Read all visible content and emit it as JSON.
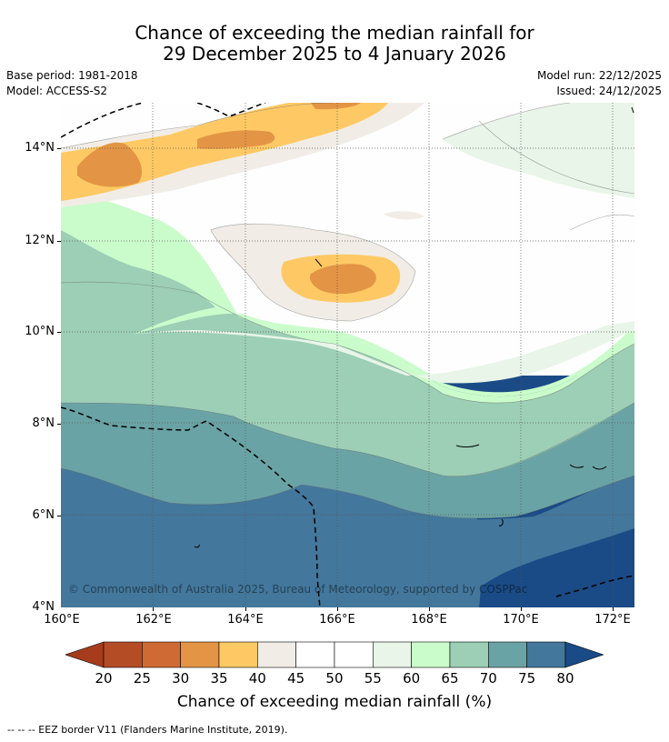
{
  "header": {
    "title_line1": "Chance of exceeding the median rainfall for",
    "title_line2": "29 December 2025 to 4 January 2026",
    "base_period": "Base period: 1981-2018",
    "model": "Model: ACCESS-S2",
    "model_run": "Model run: 22/12/2025",
    "issued": "Issued: 24/12/2025"
  },
  "map": {
    "lat_labels": [
      "14°N",
      "12°N",
      "10°N",
      "8°N",
      "6°N",
      "4°N"
    ],
    "lon_labels": [
      "160°E",
      "162°E",
      "164°E",
      "166°E",
      "168°E",
      "170°E",
      "172°E"
    ],
    "copyright": "© Commonwealth of Australia 2025, Bureau of Meteorology, supported by COSPPac"
  },
  "legend": {
    "ticks": [
      "20",
      "25",
      "30",
      "35",
      "40",
      "45",
      "50",
      "55",
      "60",
      "65",
      "70",
      "75",
      "80"
    ],
    "colors": [
      "#a63c1c",
      "#b44c26",
      "#cf6a35",
      "#e39444",
      "#fec965",
      "#f1ede6",
      "#ffffff",
      "#ffffff",
      "#e8f5e8",
      "#cafccb",
      "#9ccfb5",
      "#6aa3a5",
      "#43779c",
      "#1a4b86"
    ],
    "title": "Chance of exceeding median rainfall (%)"
  },
  "footnote": "--  --  -- EEZ border V11 (Flanders Marine Institute, 2019)."
}
